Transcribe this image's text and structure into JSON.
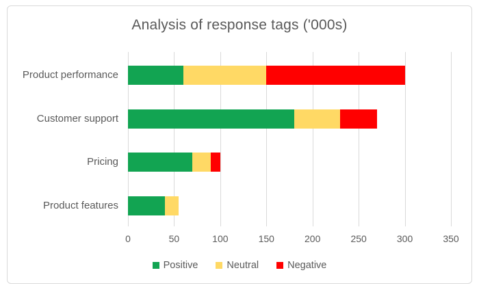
{
  "chart": {
    "title": "Analysis of response tags ('000s)"
  },
  "chart_data": {
    "type": "bar",
    "orientation": "horizontal",
    "stacked": true,
    "title": "Analysis of response tags ('000s)",
    "xlabel": "",
    "ylabel": "",
    "categories": [
      "Product performance",
      "Customer support",
      "Pricing",
      "Product features"
    ],
    "series": [
      {
        "name": "Positive",
        "color": "#12a452",
        "values": [
          60,
          180,
          70,
          40
        ]
      },
      {
        "name": "Neutral",
        "color": "#ffd965",
        "values": [
          90,
          50,
          20,
          15
        ]
      },
      {
        "name": "Negative",
        "color": "#ff0000",
        "values": [
          150,
          40,
          10,
          0
        ]
      }
    ],
    "totals": [
      300,
      270,
      100,
      55
    ],
    "xlim": [
      0,
      350
    ],
    "xticks": [
      0,
      50,
      100,
      150,
      200,
      250,
      300,
      350
    ],
    "grid": true,
    "legend_position": "bottom"
  },
  "colors": {
    "text": "#595959",
    "gridline": "#d9d9d9",
    "border": "#d9d9d9",
    "background": "#ffffff"
  }
}
